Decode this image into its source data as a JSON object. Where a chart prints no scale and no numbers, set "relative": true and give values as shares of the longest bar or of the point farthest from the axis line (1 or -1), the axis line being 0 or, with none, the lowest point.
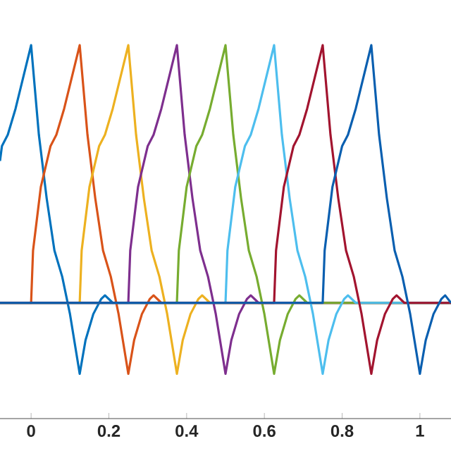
{
  "chart_data": {
    "type": "line",
    "relative": true,
    "xlim": [
      -0.08,
      1.08
    ],
    "xticks": [
      0,
      0.2,
      0.4,
      0.6,
      0.8,
      1
    ],
    "series": [
      {
        "color": "#0072bd",
        "x": [
          -0.08,
          -0.075,
          -0.06,
          -0.04,
          0,
          0.02,
          0.04,
          0.06,
          0.08,
          0.1,
          0.125,
          0.14,
          0.16,
          0.18,
          0.19,
          0.21,
          1.08
        ],
        "values": [
          0.69,
          0.73,
          0.76,
          0.83,
          1,
          0.76,
          0.59,
          0.45,
          0.38,
          0.28,
          0.12,
          0.21,
          0.28,
          0.32,
          0.33,
          0.31,
          0.31
        ]
      },
      {
        "color": "#d95319",
        "x": [
          -0.08,
          0,
          0.005,
          0.025,
          0.05,
          0.065,
          0.085,
          0.125,
          0.145,
          0.165,
          0.185,
          0.205,
          0.225,
          0.25,
          0.265,
          0.285,
          0.305,
          0.315,
          0.335,
          1.08
        ],
        "values": [
          0.31,
          0.31,
          0.45,
          0.62,
          0.73,
          0.76,
          0.83,
          1,
          0.76,
          0.59,
          0.45,
          0.38,
          0.28,
          0.12,
          0.21,
          0.28,
          0.32,
          0.33,
          0.31,
          0.31
        ]
      },
      {
        "color": "#edb120",
        "x": [
          -0.08,
          0.125,
          0.13,
          0.15,
          0.175,
          0.19,
          0.21,
          0.25,
          0.27,
          0.29,
          0.31,
          0.33,
          0.35,
          0.375,
          0.39,
          0.41,
          0.43,
          0.44,
          0.46,
          1.08
        ],
        "values": [
          0.31,
          0.31,
          0.45,
          0.62,
          0.73,
          0.76,
          0.83,
          1,
          0.76,
          0.59,
          0.45,
          0.38,
          0.28,
          0.12,
          0.21,
          0.28,
          0.32,
          0.33,
          0.31,
          0.31
        ]
      },
      {
        "color": "#7e2f8e",
        "x": [
          -0.08,
          0.25,
          0.255,
          0.275,
          0.3,
          0.315,
          0.335,
          0.375,
          0.395,
          0.415,
          0.435,
          0.455,
          0.475,
          0.5,
          0.515,
          0.535,
          0.555,
          0.565,
          0.585,
          1.08
        ],
        "values": [
          0.31,
          0.31,
          0.45,
          0.62,
          0.73,
          0.76,
          0.83,
          1,
          0.76,
          0.59,
          0.45,
          0.38,
          0.28,
          0.12,
          0.21,
          0.28,
          0.32,
          0.33,
          0.31,
          0.31
        ]
      },
      {
        "color": "#77ac30",
        "x": [
          -0.08,
          0.375,
          0.38,
          0.4,
          0.425,
          0.44,
          0.46,
          0.5,
          0.52,
          0.54,
          0.56,
          0.58,
          0.6,
          0.625,
          0.64,
          0.66,
          0.68,
          0.69,
          0.71,
          1.08
        ],
        "values": [
          0.31,
          0.31,
          0.45,
          0.62,
          0.73,
          0.76,
          0.83,
          1,
          0.76,
          0.59,
          0.45,
          0.38,
          0.28,
          0.12,
          0.21,
          0.28,
          0.32,
          0.33,
          0.31,
          0.31
        ]
      },
      {
        "color": "#4dbeee",
        "x": [
          -0.08,
          0.5,
          0.505,
          0.525,
          0.55,
          0.565,
          0.585,
          0.625,
          0.645,
          0.665,
          0.685,
          0.705,
          0.725,
          0.75,
          0.765,
          0.785,
          0.805,
          0.815,
          0.835,
          1.08
        ],
        "values": [
          0.31,
          0.31,
          0.45,
          0.62,
          0.73,
          0.76,
          0.83,
          1,
          0.76,
          0.59,
          0.45,
          0.38,
          0.28,
          0.12,
          0.21,
          0.28,
          0.32,
          0.33,
          0.31,
          0.31
        ]
      },
      {
        "color": "#a2142f",
        "x": [
          -0.08,
          0.625,
          0.63,
          0.65,
          0.675,
          0.69,
          0.71,
          0.75,
          0.77,
          0.79,
          0.81,
          0.83,
          0.85,
          0.875,
          0.89,
          0.91,
          0.93,
          0.94,
          0.96,
          1.08
        ],
        "values": [
          0.31,
          0.31,
          0.45,
          0.62,
          0.73,
          0.76,
          0.83,
          1,
          0.76,
          0.59,
          0.45,
          0.38,
          0.28,
          0.12,
          0.21,
          0.28,
          0.32,
          0.33,
          0.31,
          0.31
        ]
      },
      {
        "color": "#0a5fb0",
        "x": [
          -0.08,
          0.75,
          0.755,
          0.775,
          0.8,
          0.815,
          0.835,
          0.875,
          0.895,
          0.915,
          0.935,
          0.955,
          0.975,
          1.0,
          1.015,
          1.035,
          1.055,
          1.065,
          1.08
        ],
        "values": [
          0.31,
          0.31,
          0.45,
          0.62,
          0.73,
          0.76,
          0.83,
          1,
          0.76,
          0.59,
          0.45,
          0.38,
          0.28,
          0.12,
          0.21,
          0.28,
          0.32,
          0.33,
          0.31
        ]
      }
    ]
  }
}
